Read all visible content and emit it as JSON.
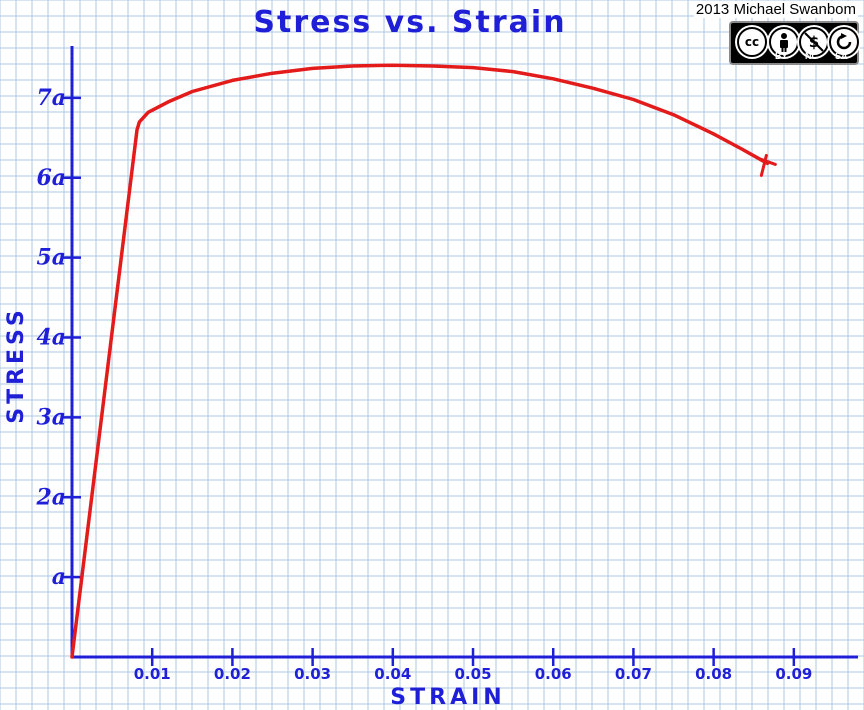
{
  "credit": {
    "text": "2013 Michael Swanbom",
    "license_mark": "cc",
    "license_tags": [
      "BY",
      "NC",
      "SA"
    ]
  },
  "colors": {
    "ink": "#1f1fd8",
    "curve": "#e31b1b",
    "grid": "#aec9e6",
    "paper": "#ffffff"
  },
  "chart_data": {
    "type": "line",
    "title": "Stress vs. Strain",
    "xlabel": "STRAIN",
    "ylabel": "STRESS",
    "xlim": [
      0,
      0.098
    ],
    "ylim": [
      0,
      7.5
    ],
    "x_ticks": [
      0.01,
      0.02,
      0.03,
      0.04,
      0.05,
      0.06,
      0.07,
      0.08,
      0.09
    ],
    "x_tick_labels": [
      "0.01",
      "0.02",
      "0.03",
      "0.04",
      "0.05",
      "0.06",
      "0.07",
      "0.08",
      "0.09"
    ],
    "y_ticks": [
      1,
      2,
      3,
      4,
      5,
      6,
      7
    ],
    "y_tick_labels": [
      "a",
      "2a",
      "3a",
      "4a",
      "5a",
      "6a",
      "7a"
    ],
    "grid": true,
    "series": [
      {
        "x": [
          0,
          0.0081,
          0.0084,
          0.0095,
          0.012,
          0.015,
          0.02,
          0.025,
          0.03,
          0.035,
          0.04,
          0.045,
          0.05,
          0.055,
          0.06,
          0.065,
          0.07,
          0.075,
          0.08,
          0.0835,
          0.0867
        ],
        "y": [
          0,
          6.6,
          6.7,
          6.82,
          6.95,
          7.08,
          7.22,
          7.31,
          7.37,
          7.4,
          7.41,
          7.4,
          7.38,
          7.33,
          7.24,
          7.12,
          6.98,
          6.79,
          6.55,
          6.36,
          6.18
        ]
      }
    ],
    "annotations": [
      {
        "type": "fracture-mark",
        "x": 0.0867,
        "y": 6.18
      }
    ]
  }
}
